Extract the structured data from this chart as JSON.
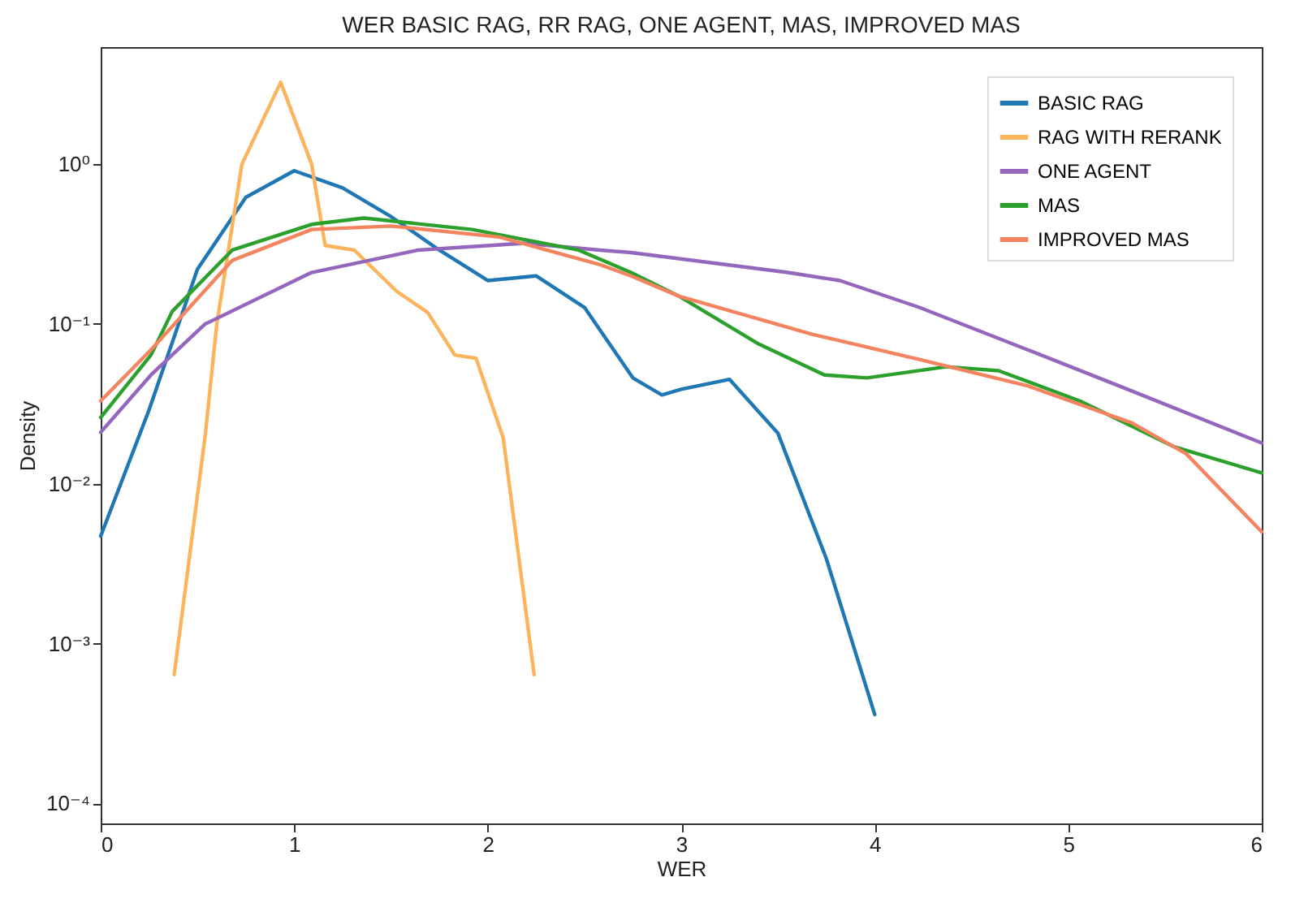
{
  "chart_data": {
    "type": "line",
    "title": "WER BASIC RAG, RR RAG, ONE AGENT, MAS, IMPROVED MAS",
    "xlabel": "WER",
    "ylabel": "Density",
    "log": "y",
    "grid": false,
    "legend": "top right",
    "line_style": "solid",
    "marker": "none",
    "xlim": [
      0,
      6
    ],
    "xticks": [
      0,
      1,
      2,
      3,
      4,
      5,
      6
    ],
    "ylim": [
      7.5e-05,
      5.4
    ],
    "yticks": [
      {
        "value": 0.0001,
        "label": "10⁻⁴"
      },
      {
        "value": 0.001,
        "label": "10⁻³"
      },
      {
        "value": 0.01,
        "label": "10⁻²"
      },
      {
        "value": 0.1,
        "label": "10⁻¹"
      },
      {
        "value": 1,
        "label": "10⁰"
      }
    ],
    "series": [
      {
        "name": "BASIC RAG",
        "color": "#1f77b4",
        "x": [
          0,
          0.25,
          0.5,
          0.75,
          1,
          1.25,
          1.5,
          1.75,
          2,
          2.25,
          2.5,
          2.75,
          2.9,
          3,
          3.25,
          3.5,
          3.75,
          4
        ],
        "values": [
          0.0047,
          0.029,
          0.22,
          0.62,
          0.91,
          0.71,
          0.47,
          0.29,
          0.187,
          0.2,
          0.127,
          0.046,
          0.036,
          0.039,
          0.045,
          0.0207,
          0.0034,
          0.00036
        ]
      },
      {
        "name": "RAG WITH RERANK",
        "color": "#fbb45c",
        "x": [
          0.38,
          0.54,
          0.6,
          0.73,
          0.93,
          1.09,
          1.16,
          1.31,
          1.53,
          1.69,
          1.83,
          1.94,
          2.08,
          2.24
        ],
        "values": [
          0.00064,
          0.02,
          0.1,
          1.0,
          3.25,
          1.0,
          0.31,
          0.29,
          0.16,
          0.118,
          0.064,
          0.061,
          0.0194,
          0.00064
        ]
      },
      {
        "name": "ONE AGENT",
        "color": "#9467bd",
        "x": [
          0,
          0.26,
          0.54,
          1.09,
          1.64,
          2.19,
          2.58,
          2.74,
          3.55,
          3.82,
          4.23,
          4.79,
          5.33,
          6
        ],
        "values": [
          0.021,
          0.048,
          0.1,
          0.21,
          0.29,
          0.32,
          0.29,
          0.28,
          0.21,
          0.187,
          0.127,
          0.069,
          0.038,
          0.018
        ]
      },
      {
        "name": "MAS",
        "color": "#2ca02c",
        "x": [
          0,
          0.26,
          0.37,
          0.68,
          1.09,
          1.36,
          1.92,
          2.47,
          2.74,
          2.99,
          3.4,
          3.74,
          3.96,
          4.37,
          4.64,
          5.06,
          5.55,
          6
        ],
        "values": [
          0.026,
          0.064,
          0.12,
          0.29,
          0.42,
          0.46,
          0.39,
          0.29,
          0.21,
          0.149,
          0.075,
          0.048,
          0.046,
          0.054,
          0.051,
          0.033,
          0.017,
          0.0117
        ]
      },
      {
        "name": "IMPROVED MAS",
        "color": "#f4845f",
        "x": [
          0,
          0.26,
          0.68,
          1.09,
          1.5,
          2.06,
          2.58,
          2.74,
          2.99,
          3.68,
          4.23,
          4.79,
          5.33,
          5.61,
          6
        ],
        "values": [
          0.033,
          0.069,
          0.25,
          0.39,
          0.41,
          0.35,
          0.235,
          0.2,
          0.149,
          0.086,
          0.06,
          0.041,
          0.024,
          0.0154,
          0.005
        ]
      }
    ]
  }
}
